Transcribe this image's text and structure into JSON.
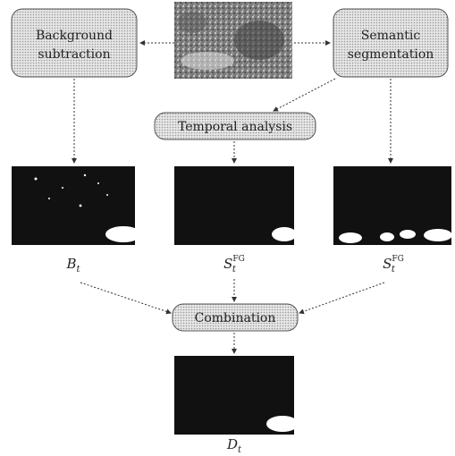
{
  "nodes": {
    "background_subtraction": {
      "line1": "Background",
      "line2": "subtraction"
    },
    "semantic_segmentation": {
      "line1": "Semantic",
      "line2": "segmentation"
    },
    "temporal_analysis": {
      "label": "Temporal analysis"
    },
    "combination": {
      "label": "Combination"
    }
  },
  "masks": {
    "bt": {
      "base": "B",
      "sub": "t"
    },
    "st_fg_temporal": {
      "base": "S",
      "sub": "t",
      "sup": "FG"
    },
    "st_fg_semantic": {
      "base": "S",
      "sub": "t",
      "sup": "FG"
    },
    "dt": {
      "base": "D",
      "sub": "t"
    }
  },
  "colors": {
    "box_fill": "#d9d9d9",
    "mask_fill": "#111111",
    "foreground": "#ffffff",
    "line": "#333333"
  }
}
